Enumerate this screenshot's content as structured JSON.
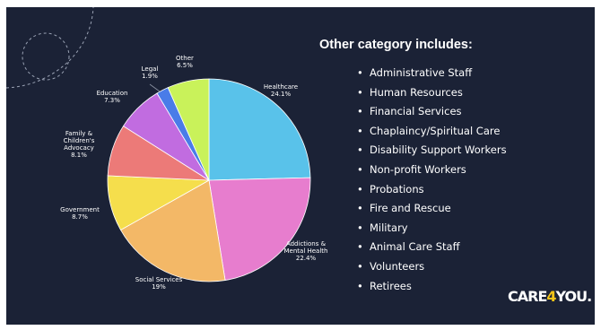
{
  "chart_data": {
    "type": "pie",
    "slices": [
      {
        "label": "Healthcare",
        "value": 24.1,
        "value_label": "24.1%",
        "color": "#59c2ea"
      },
      {
        "label": "Addictions & Mental Health",
        "value": 22.4,
        "value_label": "22.4%",
        "color": "#e77dce"
      },
      {
        "label": "Social Services",
        "value": 19,
        "value_label": "19%",
        "color": "#f3b867"
      },
      {
        "label": "Government",
        "value": 8.7,
        "value_label": "8.7%",
        "color": "#f5de4c"
      },
      {
        "label": "Family & Children's Advocacy",
        "value": 8.1,
        "value_label": "8.1%",
        "color": "#ec7a78"
      },
      {
        "label": "Education",
        "value": 7.3,
        "value_label": "7.3%",
        "color": "#c16ce0"
      },
      {
        "label": "Legal",
        "value": 1.9,
        "value_label": "1.9%",
        "color": "#4a7ce8"
      },
      {
        "label": "Other",
        "value": 6.5,
        "value_label": "6.5%",
        "color": "#c9f25a"
      }
    ],
    "start": "12 o'clock",
    "direction": "clockwise",
    "legend": "none"
  },
  "side_panel": {
    "title": "Other category includes:",
    "items": [
      "Administrative Staff",
      "Human Resources",
      "Financial Services",
      "Chaplaincy/Spiritual Care",
      "Disability Support Workers",
      "Non-profit Workers",
      "Probations",
      "Fire and Rescue",
      "Military",
      "Animal Care Staff",
      "Volunteers",
      "Retirees"
    ]
  },
  "logo": {
    "part1": "CARE",
    "part2": "4",
    "part3": "YOU",
    "part4": "."
  },
  "colors": {
    "background": "#1b2236",
    "text": "#ffffff",
    "leader_line": "#8c93a3",
    "logo_accent": "#f5c518"
  }
}
